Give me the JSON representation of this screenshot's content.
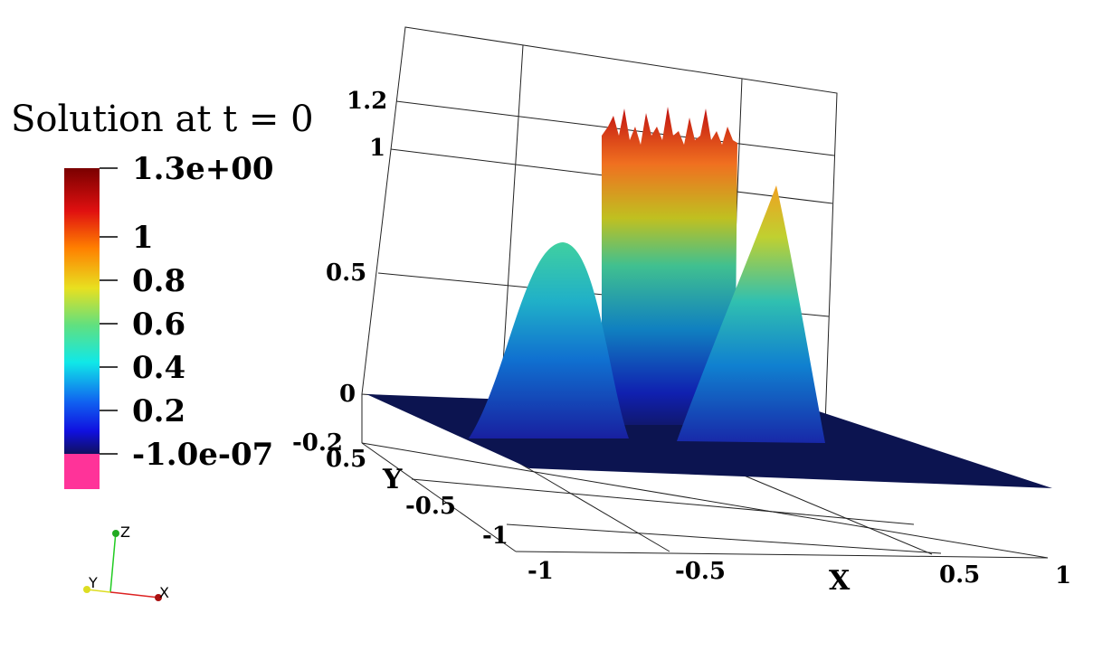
{
  "title": "Solution at t = 0",
  "colorbar": {
    "labels": [
      "1.3e+00",
      "1",
      "0.8",
      "0.6",
      "0.4",
      "0.2",
      "-1.0e-07"
    ]
  },
  "z_axis": {
    "labels": [
      "1.2",
      "1",
      "0.5",
      "0",
      "-0.2"
    ]
  },
  "y_axis": {
    "title": "Y",
    "labels": [
      "0.5",
      "-0.5",
      "-1"
    ]
  },
  "x_axis": {
    "title": "X",
    "labels": [
      "-1",
      "-0.5",
      "0.5",
      "1"
    ]
  },
  "orientation_axes": {
    "labels": [
      "Z",
      "Y",
      "X"
    ]
  }
}
